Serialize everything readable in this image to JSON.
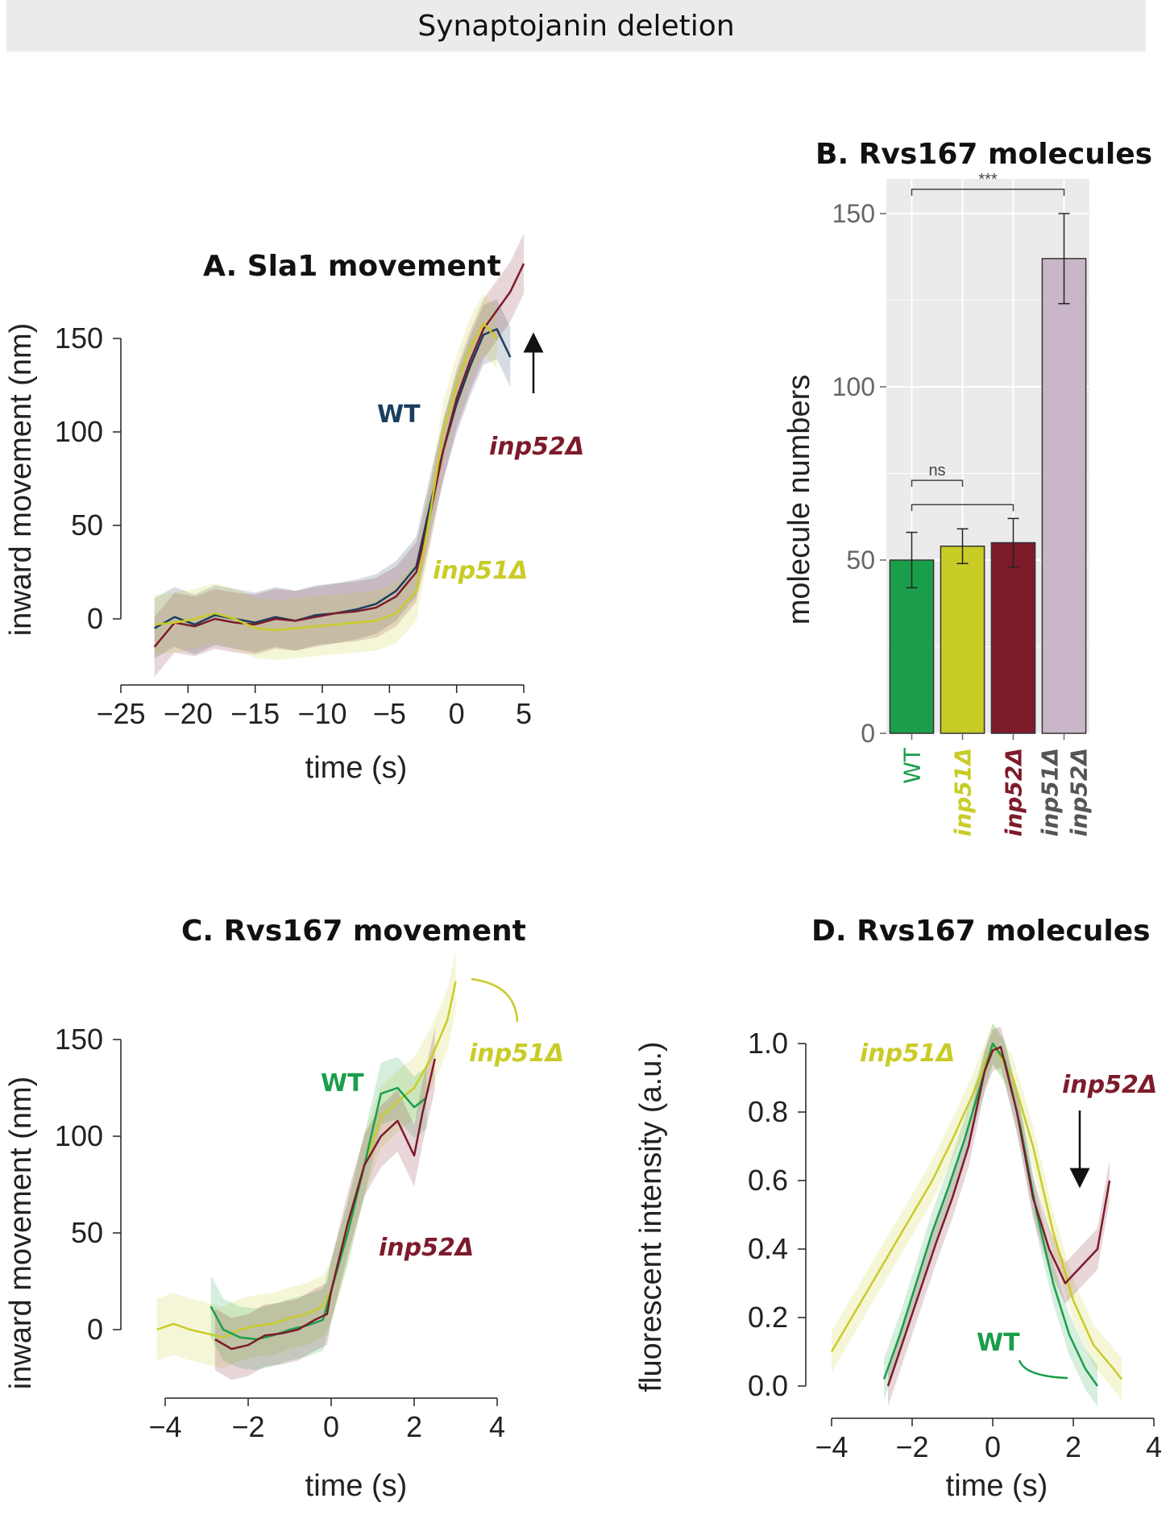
{
  "banner": {
    "title": "Synaptojanin deletion"
  },
  "chart_data": [
    {
      "id": "A",
      "type": "line",
      "title": "A.  Sla1 movement",
      "xlabel": "time (s)",
      "ylabel": "inward movement (nm)",
      "xlim": [
        -25,
        5
      ],
      "ylim": [
        0,
        150
      ],
      "xticks": [
        "−25",
        "−20",
        "−15",
        "−10",
        "−5",
        "0",
        "5"
      ],
      "yticks": [
        "0",
        "50",
        "100",
        "150"
      ],
      "colors": {
        "WT": "#1b3f5e",
        "inp52": "#7d1b2b",
        "inp51": "#c9cc27"
      },
      "series": [
        {
          "name": "WT",
          "x": [
            -22.5,
            -21,
            -19.5,
            -18,
            -16.5,
            -15,
            -13.5,
            -12,
            -10.5,
            -9,
            -7.5,
            -6,
            -4.5,
            -3,
            -2,
            -1,
            0,
            1,
            2,
            3,
            4
          ],
          "y": [
            -5,
            1,
            -3,
            2,
            0,
            -2,
            1,
            -1,
            2,
            3,
            5,
            8,
            15,
            28,
            60,
            90,
            115,
            135,
            152,
            155,
            140
          ]
        },
        {
          "name": "inp52Δ",
          "x": [
            -22.5,
            -21,
            -19.5,
            -18,
            -16.5,
            -15,
            -13.5,
            -12,
            -10.5,
            -9,
            -7.5,
            -6,
            -4.5,
            -3,
            -2,
            -1,
            0,
            1,
            2,
            3,
            4,
            5
          ],
          "y": [
            -15,
            -2,
            -4,
            0,
            -2,
            -3,
            0,
            -1,
            1,
            3,
            4,
            6,
            12,
            25,
            55,
            90,
            118,
            138,
            155,
            165,
            175,
            190
          ]
        },
        {
          "name": "inp51Δ",
          "x": [
            -22.5,
            -21,
            -19.5,
            -18,
            -16.5,
            -15,
            -13.5,
            -12,
            -10.5,
            -9,
            -7.5,
            -6,
            -4.5,
            -3,
            -2,
            -1,
            0,
            1,
            2,
            3
          ],
          "y": [
            -3,
            -2,
            0,
            3,
            0,
            -5,
            -6,
            -5,
            -4,
            -3,
            -2,
            -1,
            3,
            15,
            55,
            100,
            125,
            145,
            158,
            150
          ]
        }
      ],
      "annotations": [
        "WT",
        "inp52Δ",
        "inp51Δ"
      ]
    },
    {
      "id": "B",
      "type": "bar",
      "title": "B.  Rvs167 molecules",
      "ylabel": "molecule numbers",
      "ylim": [
        0,
        160
      ],
      "yticks": [
        "0",
        "50",
        "100",
        "150"
      ],
      "categories": [
        "WT",
        "inp51Δ",
        "inp52Δ",
        "inp51Δ inp52Δ"
      ],
      "values": [
        50,
        54,
        55,
        137
      ],
      "errors": [
        8,
        5,
        7,
        13
      ],
      "colors": [
        "#1a9e4a",
        "#c9cc27",
        "#7d1b2b",
        "#c9b6c8"
      ],
      "label_colors": [
        "#1a9e4a",
        "#c9cc27",
        "#7d1b2b",
        "#555555"
      ],
      "significance": [
        {
          "pair": [
            "WT",
            "inp51Δ inp52Δ"
          ],
          "label": "***"
        },
        {
          "pair": [
            "WT",
            "inp51Δ"
          ],
          "label": "ns"
        },
        {
          "pair": [
            "WT",
            "inp52Δ"
          ],
          "label": ""
        }
      ],
      "grid": true
    },
    {
      "id": "C",
      "type": "line",
      "title": "C.  Rvs167 movement",
      "xlabel": "time (s)",
      "ylabel": "inward movement (nm)",
      "xlim": [
        -4,
        4
      ],
      "ylim": [
        0,
        150
      ],
      "xticks": [
        "−4",
        "−2",
        "0",
        "2",
        "4"
      ],
      "yticks": [
        "0",
        "50",
        "100",
        "150"
      ],
      "colors": {
        "WT": "#1a9e4a",
        "inp52": "#7d1b2b",
        "inp51": "#c9cc27"
      },
      "series": [
        {
          "name": "inp51Δ",
          "x": [
            -4.2,
            -3.8,
            -3.4,
            -3,
            -2.6,
            -2.2,
            -1.8,
            -1.4,
            -1,
            -0.6,
            -0.2,
            0,
            0.4,
            0.8,
            1.2,
            1.6,
            2,
            2.4,
            2.8,
            3
          ],
          "y": [
            0,
            3,
            0,
            -2,
            -4,
            0,
            2,
            3,
            6,
            8,
            12,
            20,
            50,
            85,
            110,
            118,
            125,
            140,
            160,
            180
          ]
        },
        {
          "name": "WT",
          "x": [
            -2.9,
            -2.6,
            -2.2,
            -1.8,
            -1.4,
            -1,
            -0.6,
            -0.2,
            0,
            0.4,
            0.8,
            1.2,
            1.6,
            2,
            2.3
          ],
          "y": [
            12,
            0,
            -4,
            -5,
            -3,
            0,
            2,
            5,
            20,
            50,
            85,
            122,
            125,
            115,
            120
          ]
        },
        {
          "name": "inp52Δ",
          "x": [
            -2.8,
            -2.4,
            -2,
            -1.6,
            -1.2,
            -0.8,
            -0.4,
            -0.1,
            0,
            0.4,
            0.8,
            1.2,
            1.6,
            2,
            2.2,
            2.5
          ],
          "y": [
            -5,
            -10,
            -8,
            -3,
            -2,
            0,
            5,
            8,
            20,
            55,
            85,
            100,
            108,
            90,
            112,
            140
          ]
        }
      ],
      "annotations": [
        "WT",
        "inp51Δ",
        "inp52Δ"
      ]
    },
    {
      "id": "D",
      "type": "line",
      "title": "D.  Rvs167 molecules",
      "xlabel": "time (s)",
      "ylabel": "fluorescent intensity (a.u.)",
      "xlim": [
        -4,
        4
      ],
      "ylim": [
        0,
        1
      ],
      "xticks": [
        "−4",
        "−2",
        "0",
        "2",
        "4"
      ],
      "yticks": [
        "0.0",
        "0.2",
        "0.4",
        "0.6",
        "0.8",
        "1.0"
      ],
      "colors": {
        "WT": "#1a9e4a",
        "inp52": "#7d1b2b",
        "inp51": "#c9cc27"
      },
      "series": [
        {
          "name": "inp51Δ",
          "x": [
            -4,
            -3.5,
            -3,
            -2.5,
            -2,
            -1.5,
            -1,
            -0.5,
            0,
            0.5,
            1,
            1.5,
            2,
            2.5,
            3,
            3.2
          ],
          "y": [
            0.1,
            0.2,
            0.3,
            0.4,
            0.5,
            0.6,
            0.72,
            0.85,
            1.0,
            0.9,
            0.7,
            0.45,
            0.25,
            0.12,
            0.05,
            0.02
          ]
        },
        {
          "name": "WT",
          "x": [
            -2.7,
            -2.3,
            -1.9,
            -1.5,
            -1.1,
            -0.7,
            -0.3,
            0,
            0.3,
            0.7,
            1.1,
            1.5,
            1.9,
            2.3,
            2.6
          ],
          "y": [
            0.02,
            0.15,
            0.3,
            0.45,
            0.58,
            0.72,
            0.88,
            1.0,
            0.95,
            0.75,
            0.5,
            0.3,
            0.15,
            0.05,
            0.0
          ]
        },
        {
          "name": "inp52Δ",
          "x": [
            -2.6,
            -2.2,
            -1.8,
            -1.4,
            -1,
            -0.6,
            -0.2,
            0,
            0.2,
            0.6,
            1,
            1.4,
            1.8,
            2.2,
            2.6,
            2.9
          ],
          "y": [
            0.0,
            0.14,
            0.28,
            0.42,
            0.55,
            0.7,
            0.92,
            0.98,
            0.99,
            0.8,
            0.55,
            0.4,
            0.3,
            0.35,
            0.4,
            0.6
          ]
        }
      ],
      "annotations": [
        "inp51Δ",
        "inp52Δ",
        "WT"
      ]
    }
  ]
}
